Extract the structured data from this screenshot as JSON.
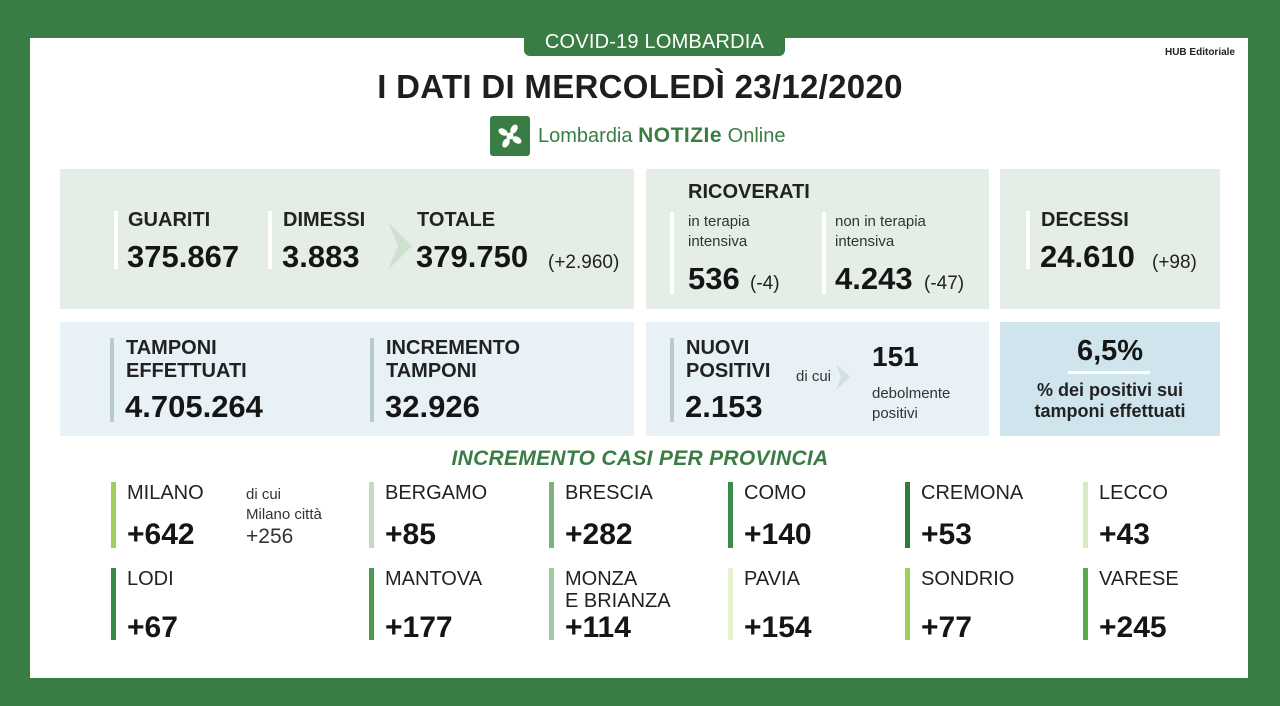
{
  "header": {
    "tag": "COVID-19 LOMBARDIA",
    "hub": "HUB Editoriale",
    "title": "I DATI DI MERCOLEDÌ 23/12/2020",
    "logo_pre": "Lombardia ",
    "logo_bold": "NOTIZIe",
    "logo_post": " Online"
  },
  "guariti": {
    "label": "GUARITI",
    "value": "375.867"
  },
  "dimessi": {
    "label": "DIMESSI",
    "value": "3.883"
  },
  "totale": {
    "label": "TOTALE",
    "value": "379.750",
    "delta": "(+2.960)"
  },
  "ricoverati": {
    "label": "RICOVERATI",
    "ti_label1": "in terapia",
    "ti_label2": "intensiva",
    "ti_value": "536",
    "ti_delta": "(-4)",
    "nti_label1": "non in terapia",
    "nti_label2": "intensiva",
    "nti_value": "4.243",
    "nti_delta": "(-47)"
  },
  "decessi": {
    "label": "DECESSI",
    "value": "24.610",
    "delta": "(+98)"
  },
  "tamponi": {
    "label1": "TAMPONI",
    "label2": "EFFETTUATI",
    "value": "4.705.264"
  },
  "incremento": {
    "label1": "INCREMENTO",
    "label2": "TAMPONI",
    "value": "32.926"
  },
  "nuovi": {
    "label1": "NUOVI",
    "label2": "POSITIVI",
    "value": "2.153",
    "dicui": "di cui",
    "deb_value": "151",
    "deb_label1": "debolmente",
    "deb_label2": "positivi"
  },
  "percent": {
    "value": "6,5%",
    "label1": "% dei positivi sui",
    "label2": "tamponi effettuati"
  },
  "province_title": "INCREMENTO CASI PER PROVINCIA",
  "milano_note": {
    "line1": "di cui",
    "line2": "Milano città",
    "line3": "+256"
  },
  "province": [
    {
      "name": "MILANO",
      "value": "+642",
      "color": "#9fcf5a"
    },
    {
      "name": "BERGAMO",
      "value": "+85",
      "color": "#c5dcc0"
    },
    {
      "name": "BRESCIA",
      "value": "+282",
      "color": "#7ab37f"
    },
    {
      "name": "COMO",
      "value": "+140",
      "color": "#3e8a4a"
    },
    {
      "name": "CREMONA",
      "value": "+53",
      "color": "#2f7a3f"
    },
    {
      "name": "LECCO",
      "value": "+43",
      "color": "#d9eabf"
    },
    {
      "name": "LODI",
      "value": "+67",
      "color": "#3a8a47"
    },
    {
      "name": "MANTOVA",
      "value": "+177",
      "color": "#4e9a4e"
    },
    {
      "name": "MONZA",
      "name2": "E BRIANZA",
      "value": "+114",
      "color": "#9fcaa6"
    },
    {
      "name": "PAVIA",
      "value": "+154",
      "color": "#e6f2cf"
    },
    {
      "name": "SONDRIO",
      "value": "+77",
      "color": "#9fcf5a"
    },
    {
      "name": "VARESE",
      "value": "+245",
      "color": "#5aa94a"
    }
  ]
}
